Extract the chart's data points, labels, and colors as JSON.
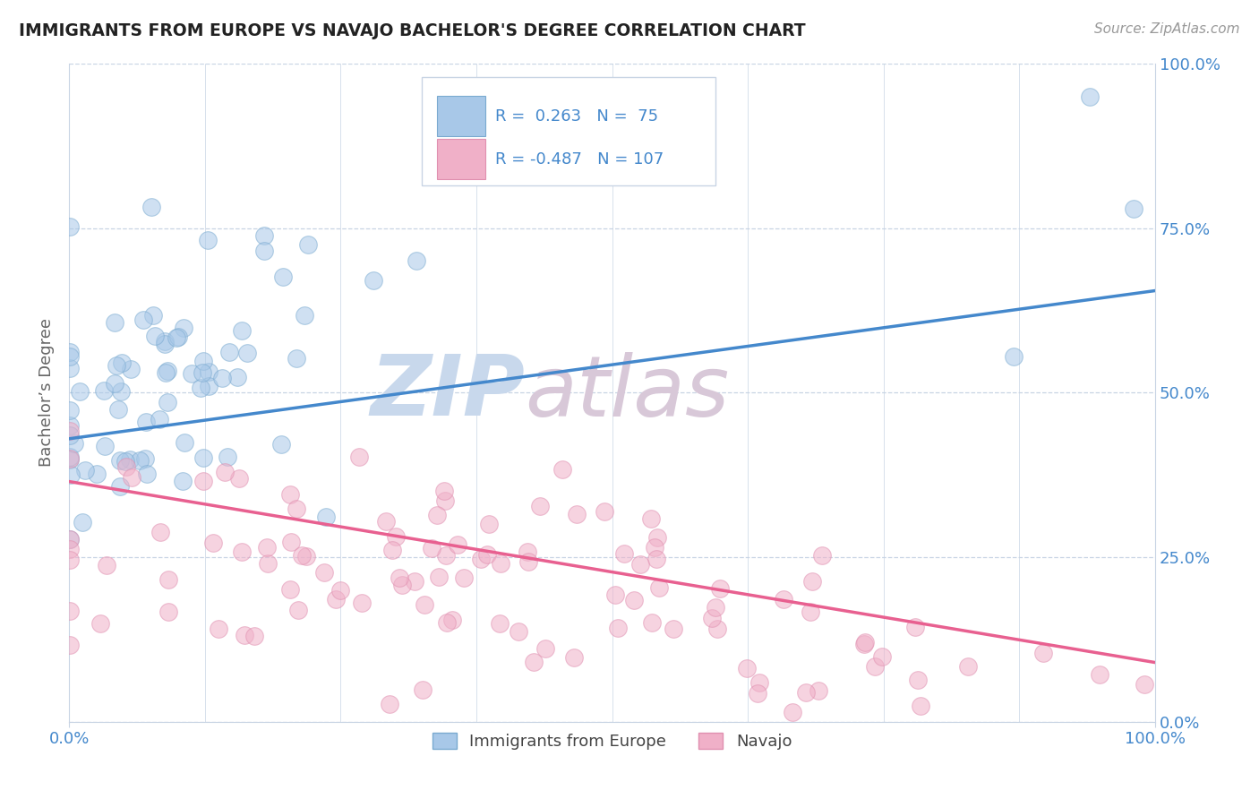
{
  "title": "IMMIGRANTS FROM EUROPE VS NAVAJO BACHELOR'S DEGREE CORRELATION CHART",
  "source": "Source: ZipAtlas.com",
  "ylabel": "Bachelor’s Degree",
  "xmin": 0.0,
  "xmax": 1.0,
  "ymin": 0.0,
  "ymax": 1.0,
  "blue_line_color": "#4488cc",
  "pink_line_color": "#e86090",
  "watermark_zip": "ZIP",
  "watermark_atlas": "atlas",
  "watermark_color_zip": "#c8d8ec",
  "watermark_color_atlas": "#d8c8d8",
  "background_color": "#ffffff",
  "blue_scatter_color": "#a8c8e8",
  "pink_scatter_color": "#f0b0c8",
  "blue_scatter_edge": "#7aaad0",
  "pink_scatter_edge": "#e090b0",
  "R_blue": 0.263,
  "N_blue": 75,
  "R_pink": -0.487,
  "N_pink": 107,
  "blue_line_start_x": 0.0,
  "blue_line_start_y": 0.43,
  "blue_line_end_x": 1.0,
  "blue_line_end_y": 0.655,
  "pink_line_start_x": 0.0,
  "pink_line_start_y": 0.365,
  "pink_line_end_x": 1.0,
  "pink_line_end_y": 0.09,
  "grid_color": "#c8d4e4",
  "tick_color": "#4488cc",
  "legend_box_color": "#e8eef6",
  "legend_box_edge": "#c8d4e4"
}
